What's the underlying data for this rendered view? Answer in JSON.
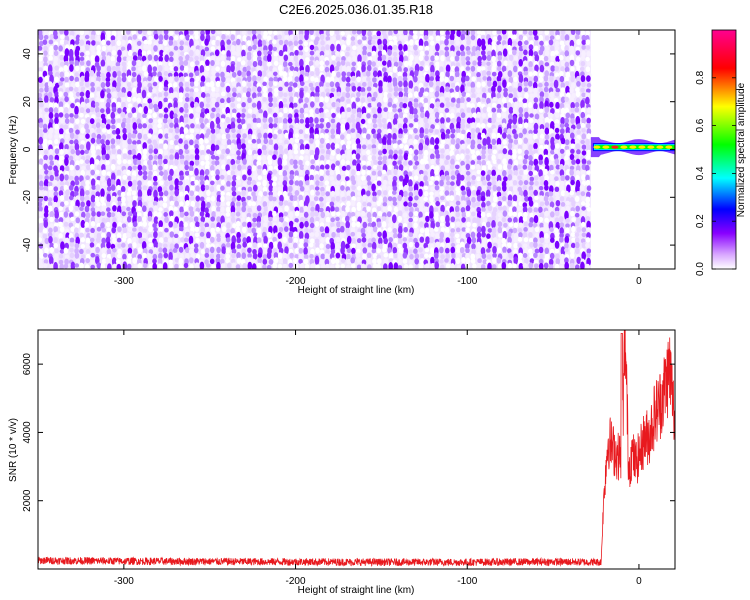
{
  "title": "C2E6.2025.036.01.35.R18",
  "chart_data": [
    {
      "type": "heatmap",
      "title": "C2E6.2025.036.01.35.R18",
      "xlabel": "Height of straight line (km)",
      "ylabel": "Frequency (Hz)",
      "xlim": [
        -350,
        21
      ],
      "ylim": [
        -50,
        50
      ],
      "xticks": [
        -300,
        -200,
        -100,
        0
      ],
      "yticks": [
        -40,
        -20,
        0,
        20,
        40
      ],
      "noise_region_x": [
        -350,
        -28
      ],
      "signal_region_x": [
        -28,
        21
      ],
      "signal_frequency_hz": 1,
      "colorbar": {
        "label": "Normalized spectral amplitude",
        "range": [
          0,
          1
        ],
        "ticks": [
          0.0,
          0.2,
          0.4,
          0.6,
          0.8
        ],
        "colors": [
          "#ffffff",
          "#8800ff",
          "#0000ff",
          "#00ffff",
          "#00ff00",
          "#ffff00",
          "#ff0000",
          "#ff0080"
        ]
      },
      "grid": false
    },
    {
      "type": "line",
      "xlabel": "Height of straight line (km)",
      "ylabel": "SNR (10 * v/v)",
      "xlim": [
        -350,
        21
      ],
      "ylim": [
        0,
        7000
      ],
      "xticks": [
        -300,
        -200,
        -100,
        0
      ],
      "yticks": [
        2000,
        4000,
        6000
      ],
      "color": "#e8191e",
      "grid": false,
      "series": [
        {
          "x": [
            -350,
            -300,
            -250,
            -200,
            -150,
            -100,
            -50,
            -22,
            -21,
            -20,
            -18,
            -15,
            -12,
            -10,
            -8,
            -6,
            -4,
            -2,
            0,
            3,
            6,
            9,
            12,
            15,
            18,
            21
          ],
          "y": [
            250,
            230,
            220,
            210,
            200,
            200,
            210,
            200,
            1500,
            2500,
            3800,
            3500,
            3300,
            3400,
            6900,
            2900,
            3400,
            3100,
            3300,
            3800,
            3900,
            4500,
            4800,
            5300,
            5900,
            4200
          ]
        }
      ]
    }
  ]
}
